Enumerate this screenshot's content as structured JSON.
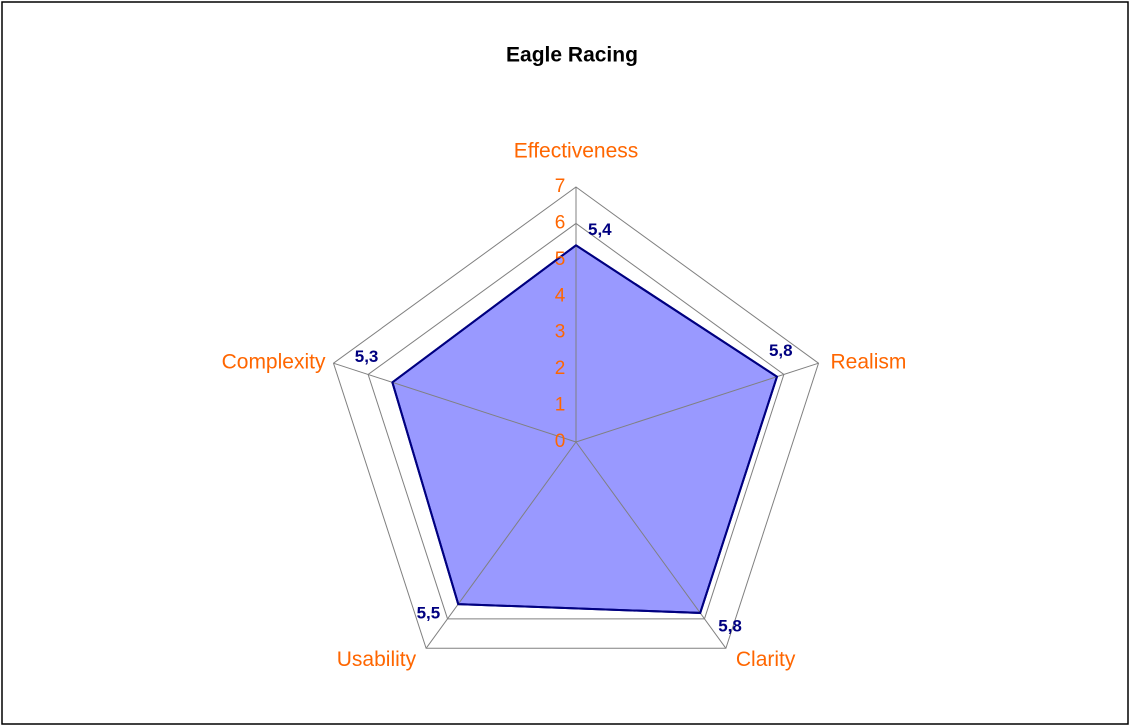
{
  "chart_data": {
    "type": "radar",
    "title": "Eagle Racing",
    "categories": [
      "Effectiveness",
      "Realism",
      "Clarity",
      "Usability",
      "Complexity"
    ],
    "series": [
      {
        "name": "Eagle Racing",
        "color": "#9999ff",
        "line_color": "#000080",
        "values": [
          5.4,
          5.8,
          5.8,
          5.5,
          5.3
        ],
        "value_labels": [
          "5,4",
          "5,8",
          "5,8",
          "5,5",
          "5,3"
        ]
      }
    ],
    "ylim": [
      0,
      7
    ],
    "yticks": [
      0,
      1,
      2,
      3,
      4,
      5,
      6,
      7
    ],
    "grid": true
  }
}
